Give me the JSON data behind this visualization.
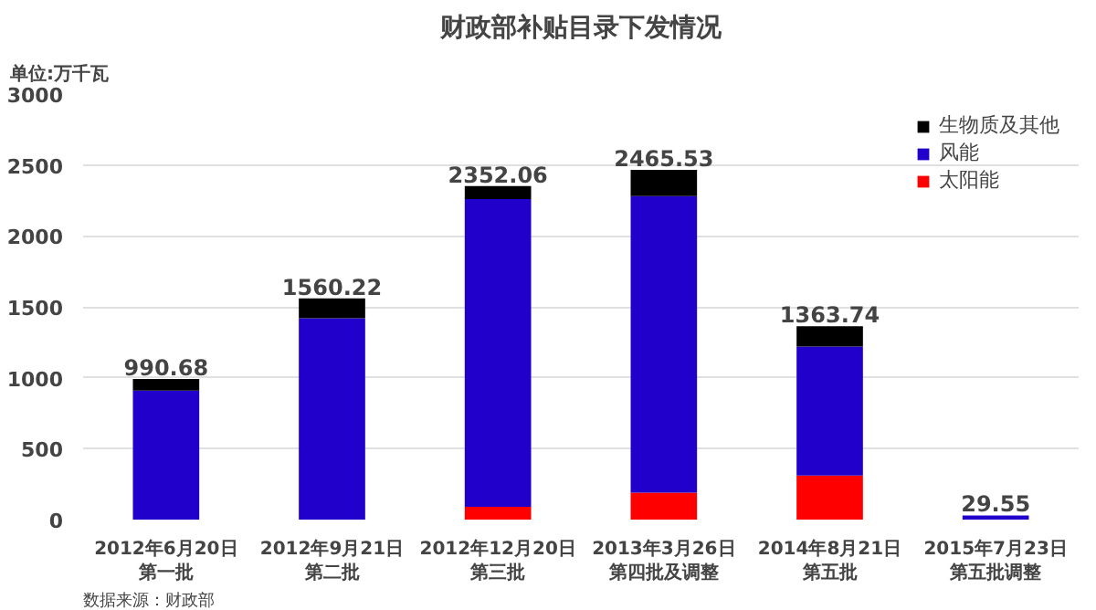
{
  "chart_data": {
    "type": "bar",
    "title": "财政部补贴目录下发情况",
    "ylabel": "单位:万千瓦",
    "categories": [
      "2012年6月20日第一批",
      "2012年9月21日第二批",
      "2012年12月20日第三批",
      "2013年3月26日第四批及调整",
      "2014年8月21日第五批",
      "2015年7月23日第五批调整"
    ],
    "stacked": true,
    "series": [
      {
        "name": "太阳能",
        "color": "#ff0000",
        "values": [
          0,
          0,
          90,
          190,
          310,
          0
        ]
      },
      {
        "name": "风能",
        "color": "#2200cc",
        "values": [
          910,
          1420,
          2170,
          2090,
          910,
          29.55
        ]
      },
      {
        "name": "生物质及其他",
        "color": "#000000",
        "values": [
          80.68,
          140.22,
          92.06,
          185.53,
          143.74,
          0
        ]
      }
    ],
    "totals": [
      "990.68",
      "1560.22",
      "2352.06",
      "2465.53",
      "1363.74",
      "29.55"
    ],
    "ylim": [
      0,
      3000
    ],
    "yticks": [
      0,
      500,
      1000,
      1500,
      2000,
      2500,
      3000
    ],
    "grid": "y",
    "legend": "top right",
    "annotations": [
      "数据来源：财政部"
    ]
  }
}
